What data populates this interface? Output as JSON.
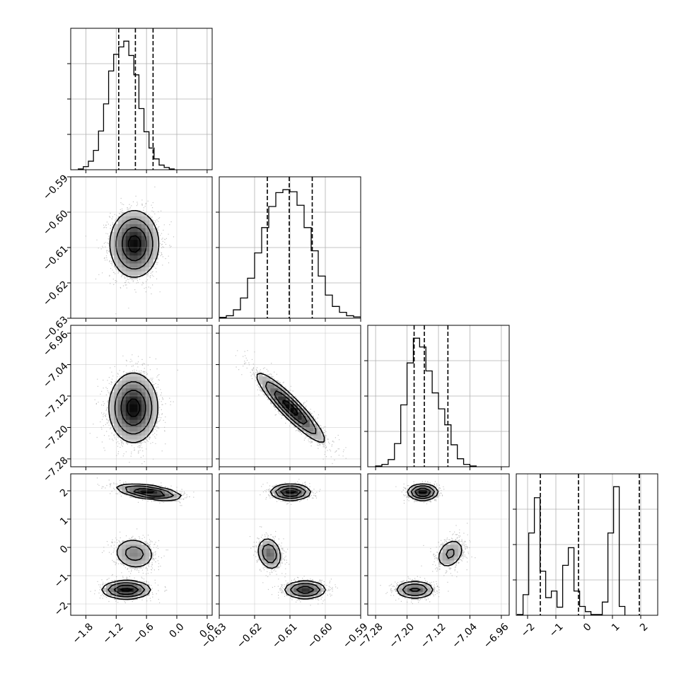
{
  "chart_data": {
    "type": "corner",
    "n_params": 4,
    "panel_size": 200,
    "panel_gap": 10,
    "grid": true,
    "axis_ranges": [
      [
        -2.1,
        0.7
      ],
      [
        -0.63,
        -0.59
      ],
      [
        -7.3,
        -6.94
      ],
      [
        -2.4,
        2.6
      ]
    ],
    "ticks": [
      {
        "values": [
          -1.8,
          -1.2,
          -0.6,
          0.0,
          0.6
        ],
        "labels": [
          "−1.8",
          "−1.2",
          "−0.6",
          "0.0",
          "0.6"
        ]
      },
      {
        "values": [
          -0.63,
          -0.62,
          -0.61,
          -0.6,
          -0.59
        ],
        "labels": [
          "−0.63",
          "−0.62",
          "−0.61",
          "−0.60",
          "−0.59"
        ]
      },
      {
        "values": [
          -7.28,
          -7.2,
          -7.12,
          -7.04,
          -6.96
        ],
        "labels": [
          "−7.28",
          "−7.20",
          "−7.12",
          "−7.04",
          "−6.96"
        ]
      },
      {
        "values": [
          -2,
          -1,
          0,
          1,
          2
        ],
        "labels": [
          "−2",
          "−1",
          "0",
          "1",
          "2"
        ]
      }
    ],
    "diag": [
      {
        "edges_start": -1.95,
        "edges_step": 0.1,
        "counts": [
          2,
          8,
          22,
          50,
          100,
          170,
          255,
          298,
          317,
          332,
          295,
          245,
          158,
          98,
          56,
          28,
          12,
          6,
          2
        ],
        "quantiles": [
          -1.15,
          -0.82,
          -0.47
        ]
      },
      {
        "edges_start": -0.63,
        "edges_step": 0.002,
        "counts": [
          2,
          6,
          20,
          48,
          95,
          155,
          215,
          265,
          298,
          305,
          300,
          268,
          215,
          160,
          100,
          55,
          28,
          14,
          6,
          3
        ],
        "quantiles": [
          -0.6164,
          -0.6102,
          -0.6037
        ]
      },
      {
        "edges_start": -7.28,
        "edges_step": 0.016,
        "counts": [
          2,
          6,
          18,
          58,
          155,
          260,
          322,
          300,
          240,
          185,
          145,
          105,
          55,
          20,
          6,
          2
        ],
        "quantiles": [
          -7.182,
          -7.156,
          -7.096
        ]
      },
      {
        "edges_start": -2.36,
        "edges_step": 0.2,
        "counts": [
          1,
          28,
          112,
          160,
          60,
          24,
          33,
          11,
          68,
          92,
          33,
          12,
          5,
          1,
          1,
          18,
          112,
          175,
          12
        ],
        "quantiles": [
          -1.55,
          -0.2,
          1.95
        ]
      }
    ],
    "pairs": [
      {
        "x": 0,
        "y": 1,
        "modes": [
          {
            "cx": -0.84,
            "cy": -0.609,
            "sx": 0.24,
            "sy": 0.0047,
            "rho": 0.0,
            "w": 1.0
          }
        ]
      },
      {
        "x": 0,
        "y": 2,
        "modes": [
          {
            "cx": -0.86,
            "cy": -7.15,
            "sx": 0.24,
            "sy": 0.044,
            "rho": 0.0,
            "w": 1.0
          }
        ]
      },
      {
        "x": 0,
        "y": 3,
        "modes": [
          {
            "cx": -0.55,
            "cy": 1.95,
            "sx": 0.32,
            "sy": 0.14,
            "rho": -0.55,
            "w": 0.36
          },
          {
            "cx": -0.84,
            "cy": -0.22,
            "sx": 0.22,
            "sy": 0.3,
            "rho": -0.1,
            "w": 0.28
          },
          {
            "cx": -1.0,
            "cy": -1.5,
            "sx": 0.24,
            "sy": 0.16,
            "rho": 0.0,
            "w": 0.36
          }
        ]
      },
      {
        "x": 1,
        "y": 2,
        "modes": [
          {
            "cx": -0.6098,
            "cy": -7.15,
            "sx": 0.0048,
            "sy": 0.044,
            "rho": -0.92,
            "w": 1.0
          }
        ]
      },
      {
        "x": 1,
        "y": 3,
        "modes": [
          {
            "cx": -0.6098,
            "cy": 1.95,
            "sx": 0.0028,
            "sy": 0.14,
            "rho": 0.0,
            "w": 0.36
          },
          {
            "cx": -0.6158,
            "cy": -0.22,
            "sx": 0.0018,
            "sy": 0.3,
            "rho": -0.2,
            "w": 0.28
          },
          {
            "cx": -0.6057,
            "cy": -1.5,
            "sx": 0.003,
            "sy": 0.16,
            "rho": 0.0,
            "w": 0.36
          }
        ]
      },
      {
        "x": 2,
        "y": 3,
        "modes": [
          {
            "cx": -7.16,
            "cy": 1.95,
            "sx": 0.019,
            "sy": 0.14,
            "rho": 0.0,
            "w": 0.36
          },
          {
            "cx": -7.09,
            "cy": -0.22,
            "sx": 0.02,
            "sy": 0.3,
            "rho": 0.3,
            "w": 0.28
          },
          {
            "cx": -7.18,
            "cy": -1.5,
            "sx": 0.025,
            "sy": 0.16,
            "rho": 0.0,
            "w": 0.36
          }
        ]
      }
    ],
    "contour_levels_sigma": [
      0.5,
      1.0,
      1.5,
      2.0
    ],
    "colors": {
      "line": "#000000",
      "grid": "#b0b0b0",
      "scatter": "#555555"
    }
  }
}
